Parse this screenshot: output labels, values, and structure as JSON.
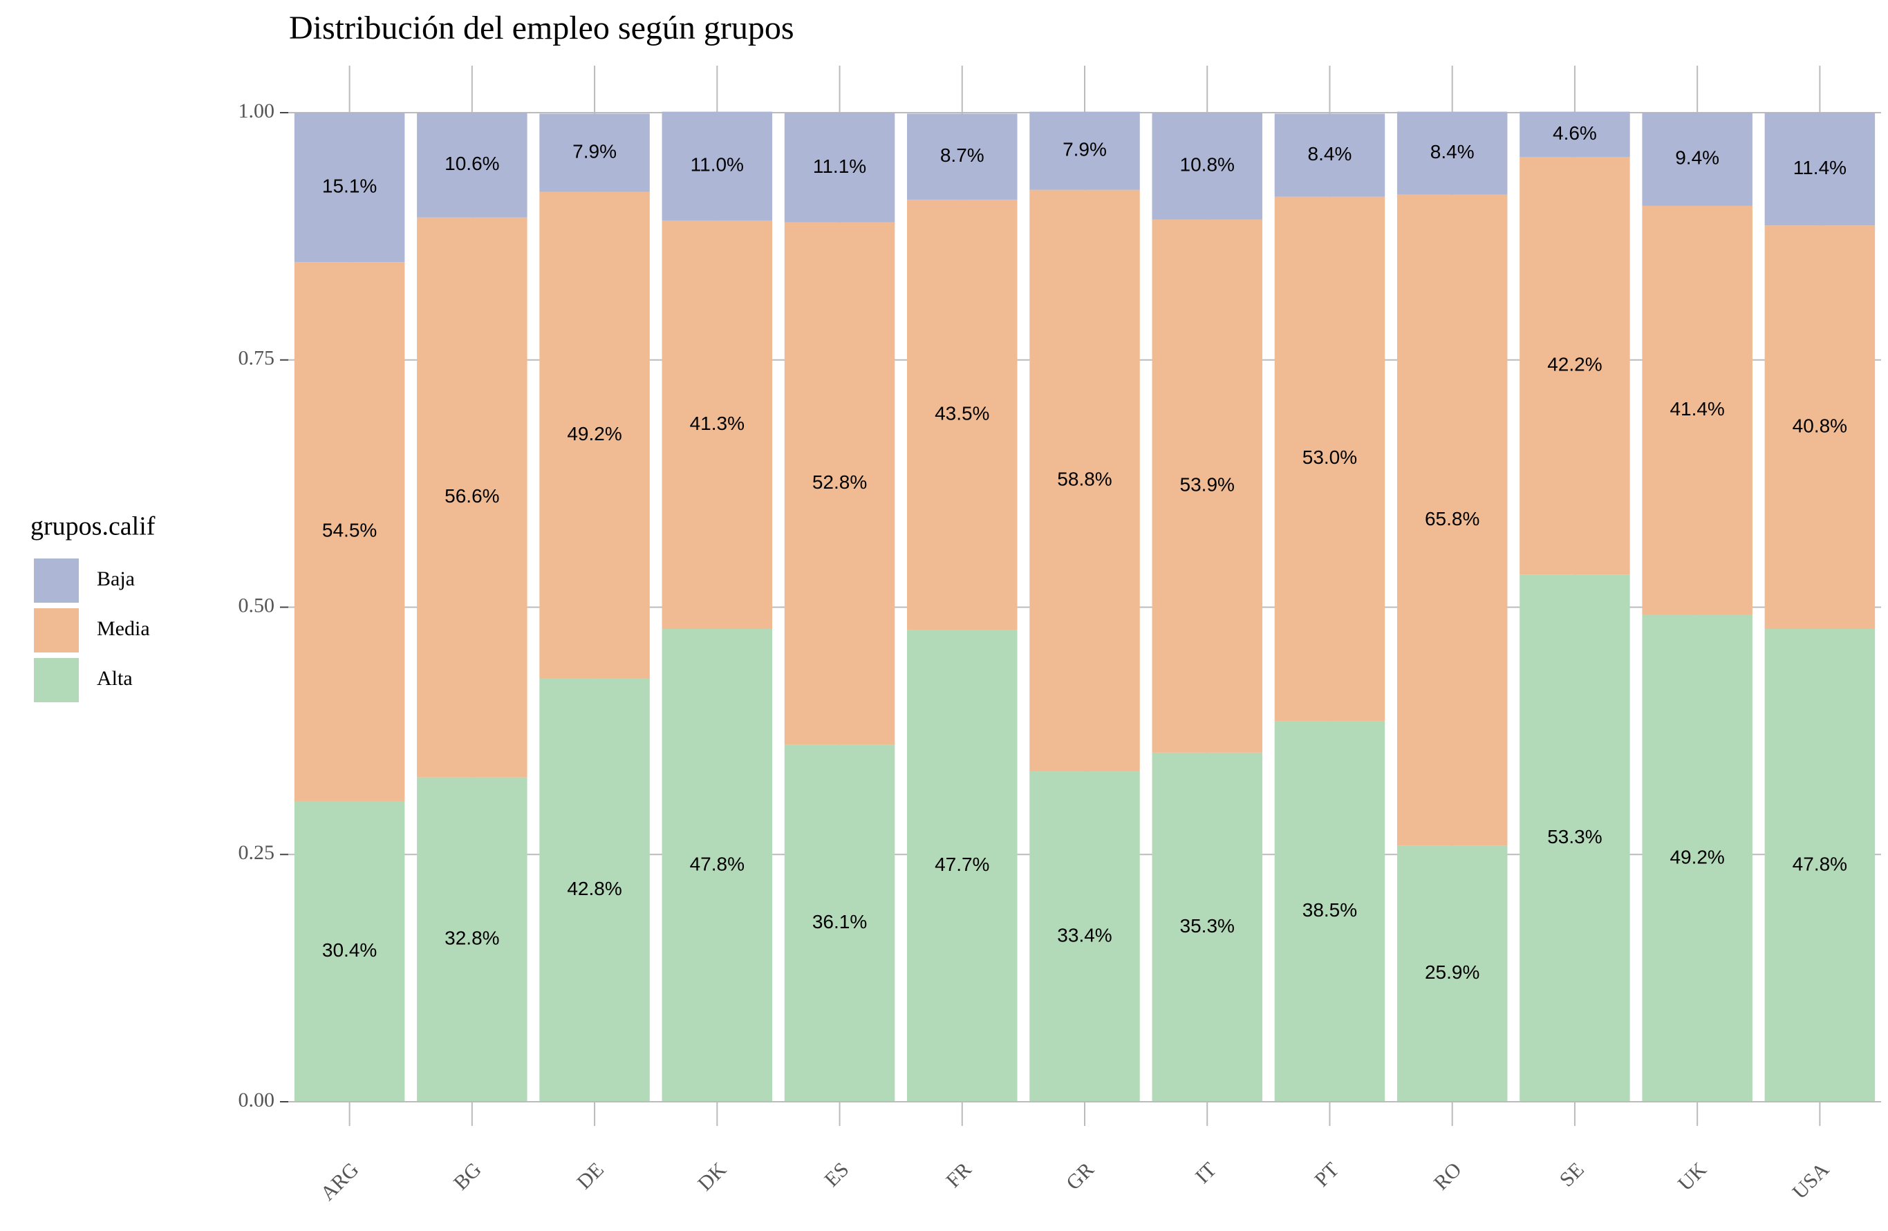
{
  "chart_data": {
    "type": "stacked_bar",
    "title": "Distribución del empleo según grupos",
    "categories": [
      "ARG",
      "BG",
      "DE",
      "DK",
      "ES",
      "FR",
      "GR",
      "IT",
      "PT",
      "RO",
      "SE",
      "UK",
      "USA"
    ],
    "legend_title": "grupos.calif",
    "legend": "left",
    "grid": true,
    "ylim": [
      0,
      1
    ],
    "yticks": [
      {
        "value": 0,
        "label": "0.00"
      },
      {
        "value": 0.25,
        "label": "0.25"
      },
      {
        "value": 0.5,
        "label": "0.50"
      },
      {
        "value": 0.75,
        "label": "0.75"
      },
      {
        "value": 1,
        "label": "1.00"
      }
    ],
    "series": [
      {
        "name": "Alta",
        "color": "#b3dab8",
        "values": [
          0.304,
          0.328,
          0.428,
          0.478,
          0.361,
          0.477,
          0.334,
          0.353,
          0.385,
          0.259,
          0.533,
          0.492,
          0.478
        ],
        "value_labels": [
          "30.4%",
          "32.8%",
          "42.8%",
          "47.8%",
          "36.1%",
          "47.7%",
          "33.4%",
          "35.3%",
          "38.5%",
          "25.9%",
          "53.3%",
          "49.2%",
          "47.8%"
        ]
      },
      {
        "name": "Media",
        "color": "#f0bb93",
        "values": [
          0.545,
          0.566,
          0.492,
          0.413,
          0.528,
          0.435,
          0.588,
          0.539,
          0.53,
          0.658,
          0.422,
          0.414,
          0.408
        ],
        "value_labels": [
          "54.5%",
          "56.6%",
          "49.2%",
          "41.3%",
          "52.8%",
          "43.5%",
          "58.8%",
          "53.9%",
          "53.0%",
          "65.8%",
          "42.2%",
          "41.4%",
          "40.8%"
        ]
      },
      {
        "name": "Baja",
        "color": "#aeb6d5",
        "values": [
          0.151,
          0.106,
          0.079,
          0.11,
          0.111,
          0.087,
          0.079,
          0.108,
          0.084,
          0.084,
          0.046,
          0.094,
          0.114
        ],
        "value_labels": [
          "15.1%",
          "10.6%",
          "7.9%",
          "11.0%",
          "11.1%",
          "8.7%",
          "7.9%",
          "10.8%",
          "8.4%",
          "8.4%",
          "4.6%",
          "9.4%",
          "11.4%"
        ]
      }
    ]
  }
}
